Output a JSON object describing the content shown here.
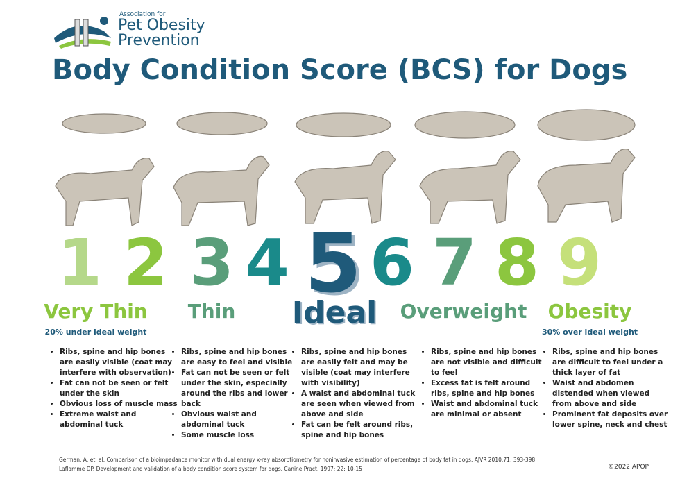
{
  "header": {
    "org_small": "Association for",
    "org_line1": "Pet Obesity",
    "org_line2": "Prevention",
    "title": "Body Condition Score (BCS) for Dogs"
  },
  "scores": [
    1,
    2,
    3,
    4,
    5,
    6,
    7,
    8,
    9
  ],
  "groups": [
    {
      "label": "Very Thin",
      "note": "20% under ideal weight",
      "bullets": [
        "Ribs, spine and hip bones are easily visible (coat may interfere with observation)",
        "Fat can not be seen or felt under the skin",
        "Obvious loss of muscle mass",
        "Extreme waist and abdominal tuck"
      ]
    },
    {
      "label": "Thin",
      "bullets": [
        "Ribs, spine and hip bones are easy to feel and visible",
        "Fat can not be seen or felt under the skin, especially around the ribs and lower back",
        "Obvious waist and abdominal tuck",
        "Some muscle loss"
      ]
    },
    {
      "label": "Ideal",
      "bullets": [
        "Ribs, spine and hip bones are easily felt and may be visible (coat may interfere with visibility)",
        "A waist and abdominal tuck are seen when viewed from above and side",
        "Fat can be felt around ribs, spine and hip bones"
      ]
    },
    {
      "label": "Overweight",
      "bullets": [
        "Ribs, spine and hip bones are not visible and difficult to feel",
        "Excess fat is felt around ribs, spine and hip bones",
        "Waist and abdominal tuck are minimal or absent"
      ]
    },
    {
      "label": "Obesity",
      "note": "30% over ideal weight",
      "bullets": [
        "Ribs, spine and hip bones are difficult to feel under a thick layer of fat",
        "Waist and abdomen distended when viewed from above and side",
        "Prominent fat deposits over lower spine, neck and chest"
      ]
    }
  ],
  "references": [
    "German, A, et. al. Comparison of a bioimpedance monitor with dual energy x-ray absorptiometry for noninvasive estimation of percentage of body fat in dogs. AJVR 2010;71: 393-398.",
    "Laflamme DP. Development and validation of a body condition score system for dogs. Canine Pract. 1997; 22: 10-15"
  ],
  "copyright": "©2022 APOP"
}
